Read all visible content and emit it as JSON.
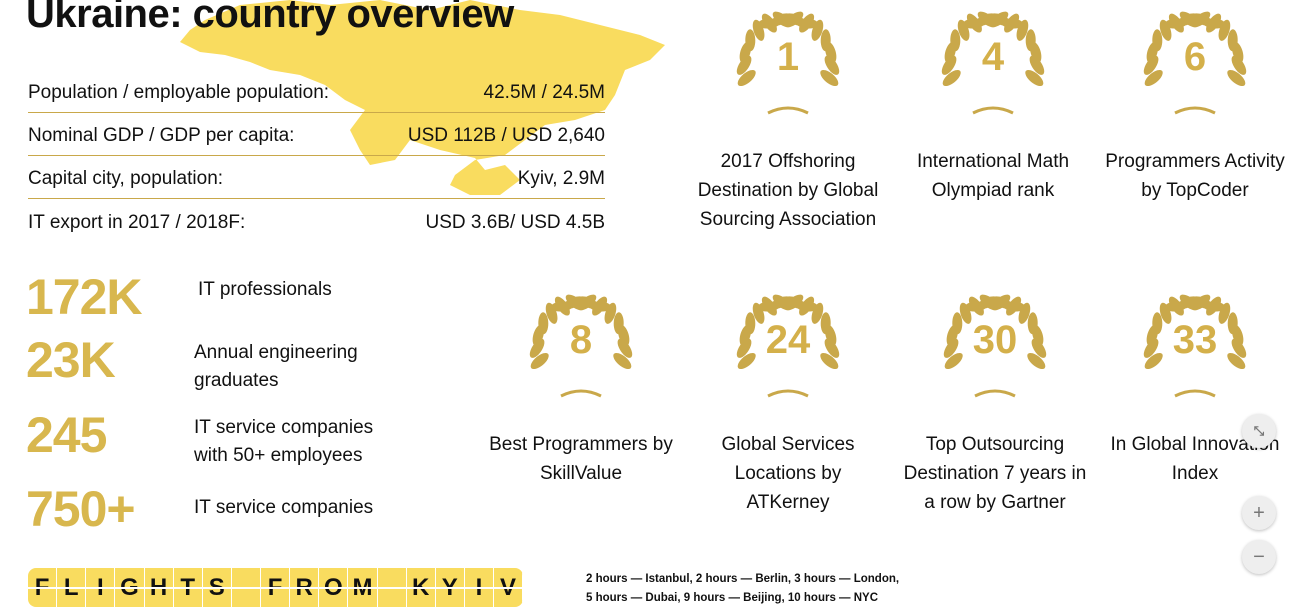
{
  "title": "Ukraine: country overview",
  "facts": [
    {
      "label": "Population / employable population:",
      "value": "42.5M / 24.5M"
    },
    {
      "label": "Nominal GDP / GDP per capita:",
      "value": "USD 112B / USD 2,640"
    },
    {
      "label": "Capital city, population:",
      "value": "Kyiv, 2.9M"
    },
    {
      "label": "IT export in 2017 / 2018F:",
      "value": "USD 3.6B/ USD 4.5B"
    }
  ],
  "stats": [
    {
      "num": "172K",
      "label": "IT professionals"
    },
    {
      "num": "23K",
      "label": "Annual engineering graduates"
    },
    {
      "num": "245",
      "label": "IT service companies with 50+ employees"
    },
    {
      "num": "750+",
      "label": "IT service companies"
    }
  ],
  "awards": [
    {
      "rank": "1",
      "caption": "2017 Offshoring Destination by Global Sourcing Association"
    },
    {
      "rank": "4",
      "caption": "International Math Olympiad rank"
    },
    {
      "rank": "6",
      "caption": "Programmers Activity by TopCoder"
    },
    {
      "rank": "8",
      "caption": "Best Programmers by SkillValue"
    },
    {
      "rank": "24",
      "caption": "Global Services Locations by ATKerney"
    },
    {
      "rank": "30",
      "caption": "Top Outsourcing Destination 7 years in a row by Gartner"
    },
    {
      "rank": "33",
      "caption": "In Global Innovation Index"
    }
  ],
  "flights": {
    "label": "FLIGHTS FROM KYIV",
    "line1": "2 hours — Istanbul, 2 hours — Berlin, 3 hours — London,",
    "line2": "5 hours — Dubai,  9 hours — Beijing, 10 hours — NYC"
  },
  "controls": {
    "collapse": "collapse-icon",
    "zoom_in": "+",
    "zoom_out": "−"
  },
  "colors": {
    "map": "#f9dc5f",
    "accent": "#d8b74e",
    "laurel": "#c9a84a"
  }
}
